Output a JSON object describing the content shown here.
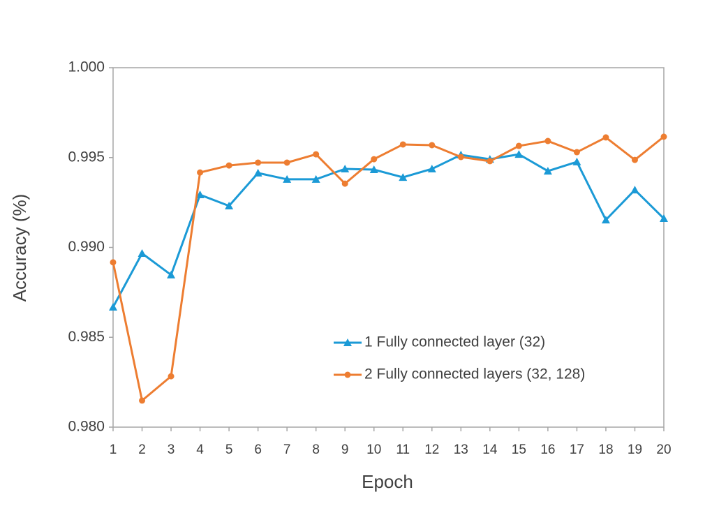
{
  "chart_data": {
    "type": "line",
    "x_label": "Epoch",
    "y_label": "Accuracy (%)",
    "x": [
      1,
      2,
      3,
      4,
      5,
      6,
      7,
      8,
      9,
      10,
      11,
      12,
      13,
      14,
      15,
      16,
      17,
      18,
      19,
      20
    ],
    "xlim": [
      1,
      20
    ],
    "xticks": [
      1,
      2,
      3,
      4,
      5,
      6,
      7,
      8,
      9,
      10,
      11,
      12,
      13,
      14,
      15,
      16,
      17,
      18,
      19,
      20
    ],
    "ylim": [
      0.98,
      1.0
    ],
    "yticks": [
      {
        "value": 0.98,
        "label": "0.980"
      },
      {
        "value": 0.985,
        "label": "0.985"
      },
      {
        "value": 0.99,
        "label": "0.990"
      },
      {
        "value": 0.995,
        "label": "0.995"
      },
      {
        "value": 1.0,
        "label": "1.000"
      }
    ],
    "grid": false,
    "legend": "lower right",
    "series": [
      {
        "name": "1 Fully connected layer (32)",
        "color": "#1b9ad6",
        "marker": "triangle",
        "values": [
          0.98668,
          0.98967,
          0.98847,
          0.99293,
          0.99231,
          0.99414,
          0.99379,
          0.99379,
          0.99437,
          0.99433,
          0.9939,
          0.99437,
          0.99515,
          0.99491,
          0.99518,
          0.99425,
          0.99476,
          0.99153,
          0.9932,
          0.99161
        ]
      },
      {
        "name": "2 Fully connected layers (32, 128)",
        "color": "#ed7d31",
        "marker": "circle",
        "values": [
          0.98917,
          0.98148,
          0.98283,
          0.99417,
          0.99456,
          0.99472,
          0.99472,
          0.99518,
          0.99355,
          0.99491,
          0.99573,
          0.99569,
          0.99503,
          0.9948,
          0.99565,
          0.99592,
          0.9953,
          0.99612,
          0.99487,
          0.99616
        ]
      }
    ]
  }
}
